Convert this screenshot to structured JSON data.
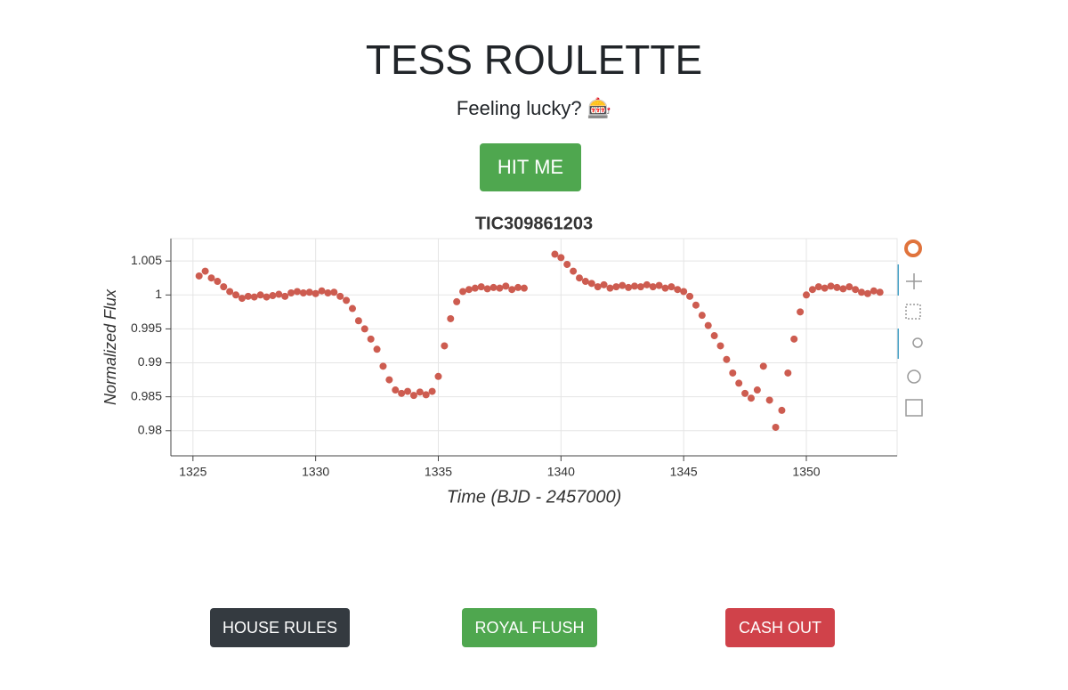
{
  "header": {
    "title": "TESS ROULETTE",
    "subtitle": "Feeling lucky? 🎰",
    "hit_button": "HIT ME"
  },
  "chart_data": {
    "type": "scatter",
    "title": "TIC309861203",
    "x_label": "Time (BJD - 2457000)",
    "y_label": "Normalized Flux",
    "color": "#cd5c50",
    "grid": true,
    "xlim": [
      1324.1,
      1353.7
    ],
    "ylim": [
      0.9763,
      1.0083
    ],
    "xticks": [
      1325,
      1330,
      1335,
      1340,
      1345,
      1350
    ],
    "yticks": [
      1.005,
      1,
      0.995,
      0.99,
      0.985,
      0.98
    ],
    "x": [
      1325.25,
      1325.5,
      1325.75,
      1326,
      1326.25,
      1326.5,
      1326.75,
      1327,
      1327.25,
      1327.5,
      1327.75,
      1328,
      1328.25,
      1328.5,
      1328.75,
      1329,
      1329.25,
      1329.5,
      1329.75,
      1330,
      1330.25,
      1330.5,
      1330.75,
      1331,
      1331.25,
      1331.5,
      1331.75,
      1332,
      1332.25,
      1332.5,
      1332.75,
      1333,
      1333.25,
      1333.5,
      1333.75,
      1334,
      1334.25,
      1334.5,
      1334.75,
      1335,
      1335.25,
      1335.5,
      1335.75,
      1336,
      1336.25,
      1336.5,
      1336.75,
      1337,
      1337.25,
      1337.5,
      1337.75,
      1338,
      1338.25,
      1338.5,
      1339.75,
      1340,
      1340.25,
      1340.5,
      1340.75,
      1341,
      1341.25,
      1341.5,
      1341.75,
      1342,
      1342.25,
      1342.5,
      1342.75,
      1343,
      1343.25,
      1343.5,
      1343.75,
      1344,
      1344.25,
      1344.5,
      1344.75,
      1345,
      1345.25,
      1345.5,
      1345.75,
      1346,
      1346.25,
      1346.5,
      1346.75,
      1347,
      1347.25,
      1347.5,
      1347.75,
      1348,
      1348.25,
      1348.5,
      1348.75,
      1349,
      1349.25,
      1349.5,
      1349.75,
      1350,
      1350.25,
      1350.5,
      1350.75,
      1351,
      1351.25,
      1351.5,
      1351.75,
      1352,
      1352.25,
      1352.5,
      1352.75,
      1353
    ],
    "values": [
      1.0028,
      1.0035,
      1.0025,
      1.002,
      1.0012,
      1.0005,
      1.0,
      0.9995,
      0.9998,
      0.9997,
      1.0,
      0.9997,
      0.9999,
      1.0001,
      0.9998,
      1.0003,
      1.0005,
      1.0003,
      1.0004,
      1.0002,
      1.0006,
      1.0003,
      1.0004,
      0.9998,
      0.9992,
      0.998,
      0.9962,
      0.995,
      0.9935,
      0.992,
      0.9895,
      0.9875,
      0.986,
      0.9855,
      0.9858,
      0.9852,
      0.9857,
      0.9853,
      0.9858,
      0.988,
      0.9925,
      0.9965,
      0.999,
      1.0005,
      1.0008,
      1.001,
      1.0012,
      1.0009,
      1.0011,
      1.001,
      1.0013,
      1.0008,
      1.0011,
      1.001,
      1.006,
      1.0055,
      1.0045,
      1.0035,
      1.0025,
      1.002,
      1.0017,
      1.0012,
      1.0015,
      1.001,
      1.0012,
      1.0014,
      1.0011,
      1.0013,
      1.0012,
      1.0015,
      1.0012,
      1.0014,
      1.001,
      1.0012,
      1.0008,
      1.0005,
      0.9998,
      0.9985,
      0.997,
      0.9955,
      0.994,
      0.9925,
      0.9905,
      0.9885,
      0.987,
      0.9855,
      0.9848,
      0.986,
      0.9895,
      0.9845,
      0.9805,
      0.983,
      0.9885,
      0.9935,
      0.9975,
      1.0,
      1.0008,
      1.0012,
      1.001,
      1.0013,
      1.0011,
      1.0009,
      1.0012,
      1.0008,
      1.0004,
      1.0002,
      1.0006,
      1.0004
    ]
  },
  "footer_buttons": [
    "HOUSE RULES",
    "ROYAL FLUSH",
    "CASH OUT"
  ]
}
